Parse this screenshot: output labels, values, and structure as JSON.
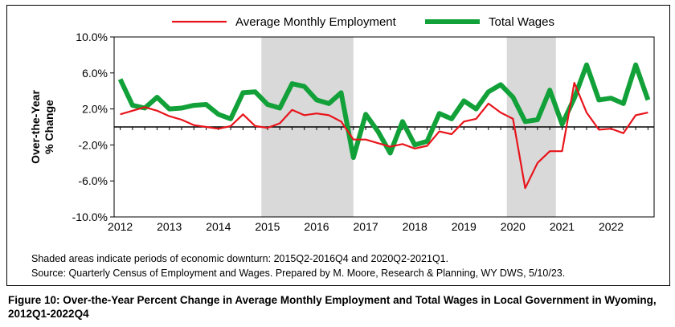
{
  "chart_data": {
    "type": "line",
    "title": "",
    "xlabel": "",
    "ylabel_lines": [
      "Over-the-Year",
      "% Change"
    ],
    "ylim": [
      -10,
      10
    ],
    "yticks": [
      10,
      6,
      2,
      -2,
      -6,
      -10
    ],
    "ytick_labels": [
      "10.0%",
      "6.0%",
      "2.0%",
      "-2.0%",
      "-6.0%",
      "-10.0%"
    ],
    "xlim": [
      2011.875,
      2022.875
    ],
    "xticks": [
      2012,
      2013,
      2014,
      2015,
      2016,
      2017,
      2018,
      2019,
      2020,
      2021,
      2022
    ],
    "xtick_labels": [
      "2012",
      "2013",
      "2014",
      "2015",
      "2016",
      "2017",
      "2018",
      "2019",
      "2020",
      "2021",
      "2022"
    ],
    "x": [
      2012.0,
      2012.25,
      2012.5,
      2012.75,
      2013.0,
      2013.25,
      2013.5,
      2013.75,
      2014.0,
      2014.25,
      2014.5,
      2014.75,
      2015.0,
      2015.25,
      2015.5,
      2015.75,
      2016.0,
      2016.25,
      2016.5,
      2016.75,
      2017.0,
      2017.25,
      2017.5,
      2017.75,
      2018.0,
      2018.25,
      2018.5,
      2018.75,
      2019.0,
      2019.25,
      2019.5,
      2019.75,
      2020.0,
      2020.25,
      2020.5,
      2020.75,
      2021.0,
      2021.25,
      2021.5,
      2021.75,
      2022.0,
      2022.25,
      2022.5,
      2022.75
    ],
    "series": [
      {
        "name": "Average Monthly Employment",
        "color": "#e8141b",
        "values": [
          1.4,
          1.8,
          2.2,
          1.8,
          1.2,
          0.8,
          0.2,
          0.0,
          -0.2,
          0.1,
          1.4,
          0.1,
          -0.1,
          0.4,
          1.9,
          1.3,
          1.5,
          1.3,
          0.6,
          -1.4,
          -1.4,
          -1.8,
          -2.2,
          -1.9,
          -2.4,
          -2.1,
          -0.5,
          -0.8,
          0.6,
          0.9,
          2.6,
          1.6,
          0.9,
          -6.8,
          -4.0,
          -2.7,
          -2.7,
          4.9,
          1.6,
          -0.3,
          -0.2,
          -0.7,
          1.3,
          1.6
        ]
      },
      {
        "name": "Total Wages",
        "color": "#12a139",
        "values": [
          5.3,
          2.4,
          2.1,
          3.3,
          2.0,
          2.1,
          2.4,
          2.5,
          1.4,
          0.9,
          3.8,
          3.9,
          2.5,
          2.1,
          4.8,
          4.5,
          3.0,
          2.6,
          3.8,
          -3.4,
          1.4,
          -0.5,
          -2.9,
          0.6,
          -2.0,
          -1.6,
          1.5,
          0.9,
          2.9,
          2.0,
          3.9,
          4.7,
          3.3,
          0.6,
          0.8,
          4.1,
          0.3,
          3.2,
          6.9,
          3.0,
          3.2,
          2.6,
          6.9,
          3.0
        ]
      }
    ],
    "shaded_periods": [
      {
        "label": "2015Q2-2016Q4",
        "start": 2014.875,
        "end": 2016.75
      },
      {
        "label": "2020Q2-2021Q1",
        "start": 2019.875,
        "end": 2020.875
      }
    ],
    "zero_line": true,
    "legend_position": "top"
  },
  "notes": {
    "shaded": "Shaded areas indicate periods of economic downturn: 2015Q2-2016Q4 and 2020Q2-2021Q1.",
    "source": "Source: Quarterly Census of Employment and Wages. Prepared by M. Moore, Research & Planning, WY DWS, 5/10/23."
  },
  "caption": "Figure 10: Over-the-Year Percent Change in Average Monthly Employment and Total Wages in Local Government in Wyoming, 2012Q1-2022Q4"
}
